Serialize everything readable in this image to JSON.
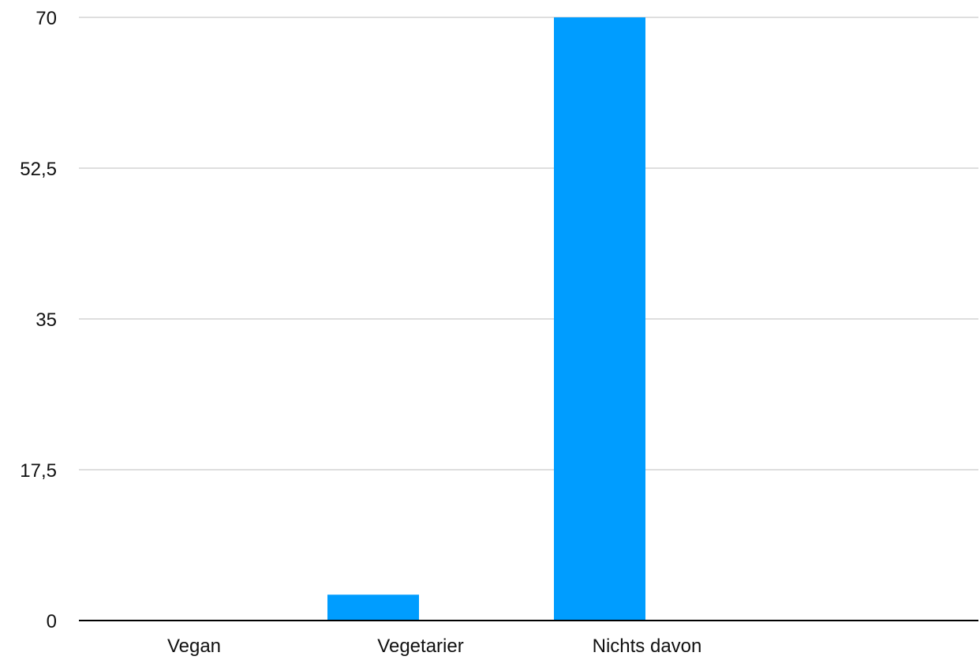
{
  "chart_data": {
    "type": "bar",
    "categories": [
      "Vegan",
      "Vegetarier",
      "Nichts davon"
    ],
    "values": [
      0,
      3,
      70
    ],
    "ylim": [
      0,
      70
    ],
    "yticks": [
      0,
      17.5,
      35,
      52.5,
      70
    ],
    "ytick_labels": [
      "0",
      "17,5",
      "35",
      "52,5",
      "70"
    ],
    "title": "",
    "xlabel": "",
    "ylabel": "",
    "grid": true,
    "legend": "none",
    "colors": {
      "bar": "#009DFF",
      "grid": "#D3D3D3",
      "axis": "#000000",
      "text": "#111111"
    }
  }
}
